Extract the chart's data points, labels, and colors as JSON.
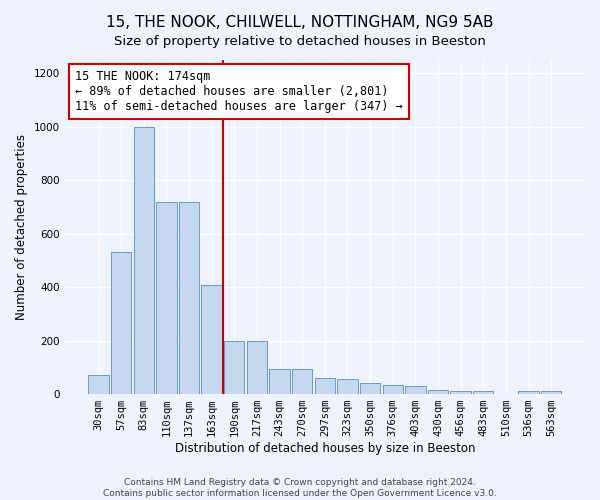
{
  "title": "15, THE NOOK, CHILWELL, NOTTINGHAM, NG9 5AB",
  "subtitle": "Size of property relative to detached houses in Beeston",
  "xlabel": "Distribution of detached houses by size in Beeston",
  "ylabel": "Number of detached properties",
  "categories": [
    "30sqm",
    "57sqm",
    "83sqm",
    "110sqm",
    "137sqm",
    "163sqm",
    "190sqm",
    "217sqm",
    "243sqm",
    "270sqm",
    "297sqm",
    "323sqm",
    "350sqm",
    "376sqm",
    "403sqm",
    "430sqm",
    "456sqm",
    "483sqm",
    "510sqm",
    "536sqm",
    "563sqm"
  ],
  "values": [
    70,
    530,
    1000,
    720,
    720,
    410,
    200,
    200,
    95,
    95,
    60,
    55,
    40,
    35,
    30,
    15,
    12,
    10,
    0,
    12,
    12
  ],
  "bar_color": "#c5d8ef",
  "bar_edge_color": "#6699cc",
  "vline_x": 6.0,
  "vline_color": "#cc0000",
  "annotation_text": "15 THE NOOK: 174sqm\n← 89% of detached houses are smaller (2,801)\n11% of semi-detached houses are larger (347) →",
  "annotation_box_color": "#ffffff",
  "annotation_box_edge_color": "#cc0000",
  "ylim": [
    0,
    1250
  ],
  "yticks": [
    0,
    200,
    400,
    600,
    800,
    1000,
    1200
  ],
  "footer": "Contains HM Land Registry data © Crown copyright and database right 2024.\nContains public sector information licensed under the Open Government Licence v3.0.",
  "bg_color": "#eef2fa",
  "grid_color": "#ffffff",
  "title_fontsize": 11,
  "subtitle_fontsize": 9.5,
  "annotation_fontsize": 8.5,
  "tick_fontsize": 7.5,
  "label_fontsize": 8.5,
  "footer_fontsize": 6.5
}
